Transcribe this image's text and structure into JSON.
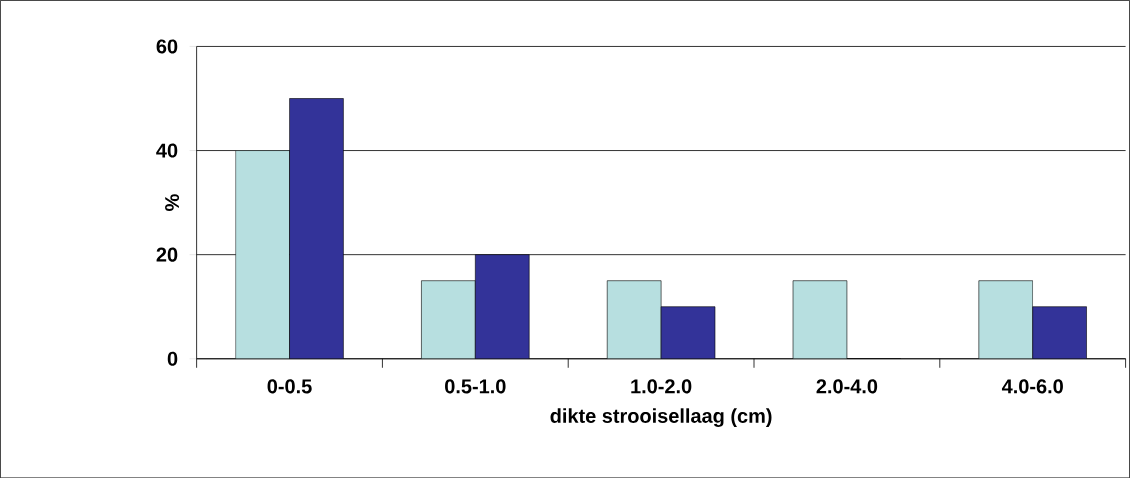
{
  "chart_data": {
    "type": "bar",
    "categories": [
      "0-0.5",
      "0.5-1.0",
      "1.0-2.0",
      "2.0-4.0",
      "4.0-6.0"
    ],
    "series": [
      {
        "color": "#b7dfe0",
        "values": [
          40,
          15,
          15,
          15,
          15
        ]
      },
      {
        "color": "#333399",
        "values": [
          50,
          20,
          10,
          0,
          10
        ]
      }
    ],
    "xlabel": "dikte strooisellaag (cm)",
    "ylabel": "%",
    "ylim": [
      0,
      60
    ],
    "yticks": [
      0,
      20,
      40,
      60
    ],
    "grid": "y"
  }
}
